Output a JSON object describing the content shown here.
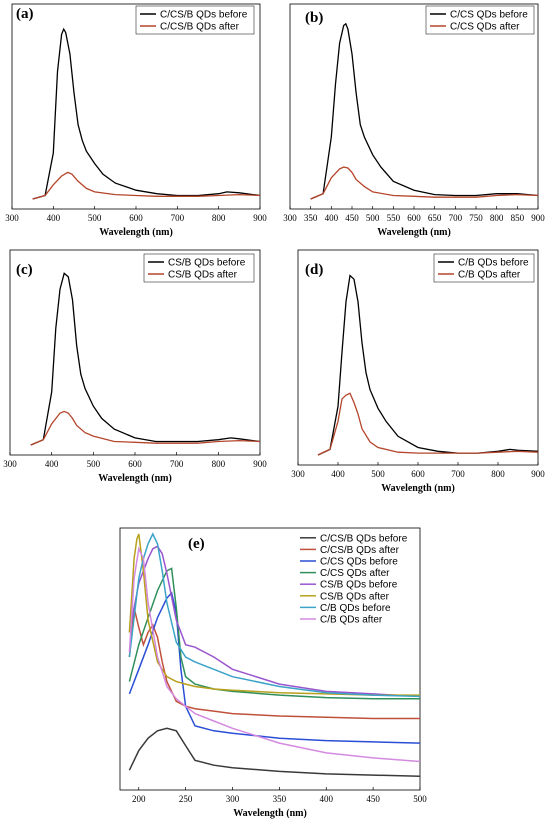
{
  "chart_data": [
    {
      "type": "line",
      "panel_label": "(a)",
      "xlabel": "Wavelength (nm)",
      "xlim": [
        300,
        900
      ],
      "ylim": [
        0,
        1.0
      ],
      "xticks": [
        300,
        400,
        500,
        600,
        700,
        800,
        900
      ],
      "legend_position": "top-right",
      "series": [
        {
          "name": "C/CS/B QDs before",
          "color": "#000000",
          "x": [
            350,
            380,
            400,
            410,
            420,
            425,
            430,
            440,
            450,
            460,
            470,
            480,
            500,
            520,
            550,
            600,
            650,
            700,
            750,
            800,
            820,
            850,
            900
          ],
          "y": [
            0.0,
            0.02,
            0.26,
            0.72,
            0.93,
            0.96,
            0.94,
            0.82,
            0.6,
            0.42,
            0.33,
            0.27,
            0.2,
            0.14,
            0.09,
            0.05,
            0.03,
            0.02,
            0.02,
            0.03,
            0.04,
            0.035,
            0.02
          ]
        },
        {
          "name": "C/CS/B QDs after",
          "color": "#b5452b",
          "x": [
            350,
            380,
            400,
            420,
            435,
            445,
            460,
            480,
            500,
            550,
            600,
            650,
            700,
            750,
            800,
            850,
            900
          ],
          "y": [
            0.0,
            0.02,
            0.08,
            0.13,
            0.15,
            0.14,
            0.1,
            0.06,
            0.04,
            0.025,
            0.02,
            0.015,
            0.015,
            0.015,
            0.02,
            0.025,
            0.02
          ]
        }
      ]
    },
    {
      "type": "line",
      "panel_label": "(b)",
      "xlabel": "Wavelength (nm)",
      "xlim": [
        300,
        900
      ],
      "ylim": [
        0,
        1.0
      ],
      "xticks": [
        300,
        350,
        400,
        450,
        500,
        550,
        600,
        650,
        700,
        750,
        800,
        850,
        900
      ],
      "legend_position": "top-right",
      "series": [
        {
          "name": "C/CS QDs before",
          "color": "#000000",
          "x": [
            350,
            380,
            400,
            410,
            420,
            430,
            435,
            440,
            450,
            460,
            470,
            480,
            500,
            520,
            550,
            600,
            650,
            700,
            750,
            800,
            850,
            900
          ],
          "y": [
            0.0,
            0.03,
            0.35,
            0.65,
            0.88,
            0.98,
            0.99,
            0.96,
            0.82,
            0.6,
            0.42,
            0.35,
            0.25,
            0.18,
            0.1,
            0.05,
            0.025,
            0.02,
            0.02,
            0.03,
            0.03,
            0.02
          ]
        },
        {
          "name": "C/CS QDs after",
          "color": "#b5452b",
          "x": [
            350,
            380,
            400,
            420,
            430,
            440,
            450,
            460,
            480,
            500,
            550,
            600,
            650,
            700,
            750,
            800,
            850,
            900
          ],
          "y": [
            0.0,
            0.03,
            0.12,
            0.17,
            0.18,
            0.175,
            0.15,
            0.11,
            0.07,
            0.04,
            0.02,
            0.015,
            0.01,
            0.01,
            0.01,
            0.02,
            0.025,
            0.02
          ]
        }
      ]
    },
    {
      "type": "line",
      "panel_label": "(c)",
      "xlabel": "Wavelength (nm)",
      "xlim": [
        300,
        900
      ],
      "ylim": [
        0,
        1.0
      ],
      "xticks": [
        300,
        400,
        500,
        600,
        700,
        800,
        900
      ],
      "legend_position": "top-right",
      "series": [
        {
          "name": "CS/B QDs before",
          "color": "#000000",
          "x": [
            350,
            380,
            400,
            410,
            420,
            430,
            440,
            450,
            460,
            470,
            480,
            500,
            520,
            550,
            600,
            650,
            700,
            750,
            800,
            830,
            850,
            900
          ],
          "y": [
            0.0,
            0.03,
            0.3,
            0.66,
            0.88,
            0.97,
            0.95,
            0.82,
            0.56,
            0.4,
            0.32,
            0.22,
            0.15,
            0.09,
            0.04,
            0.02,
            0.02,
            0.02,
            0.03,
            0.04,
            0.035,
            0.02
          ]
        },
        {
          "name": "CS/B QDs after",
          "color": "#b5452b",
          "x": [
            350,
            380,
            400,
            420,
            430,
            440,
            450,
            460,
            480,
            500,
            550,
            600,
            650,
            700,
            750,
            800,
            850,
            900
          ],
          "y": [
            0.0,
            0.03,
            0.12,
            0.18,
            0.19,
            0.18,
            0.15,
            0.11,
            0.07,
            0.05,
            0.02,
            0.015,
            0.01,
            0.01,
            0.01,
            0.02,
            0.025,
            0.02
          ]
        }
      ]
    },
    {
      "type": "line",
      "panel_label": "(d)",
      "xlabel": "Wavelength (nm)",
      "xlim": [
        300,
        900
      ],
      "ylim": [
        0,
        1.0
      ],
      "xticks": [
        300,
        400,
        500,
        600,
        700,
        800,
        900
      ],
      "legend_position": "top-right",
      "series": [
        {
          "name": "C/B QDs before",
          "color": "#000000",
          "x": [
            350,
            380,
            400,
            410,
            420,
            430,
            440,
            450,
            460,
            470,
            480,
            500,
            520,
            550,
            600,
            650,
            700,
            750,
            800,
            830,
            850,
            900
          ],
          "y": [
            0.0,
            0.03,
            0.26,
            0.55,
            0.82,
            0.96,
            0.94,
            0.82,
            0.6,
            0.44,
            0.35,
            0.25,
            0.18,
            0.1,
            0.04,
            0.02,
            0.01,
            0.01,
            0.02,
            0.03,
            0.025,
            0.02
          ]
        },
        {
          "name": "C/B QDs after",
          "color": "#b5452b",
          "x": [
            350,
            380,
            400,
            410,
            420,
            430,
            440,
            450,
            460,
            480,
            500,
            550,
            600,
            650,
            700,
            750,
            800,
            850,
            900
          ],
          "y": [
            0.0,
            0.03,
            0.18,
            0.3,
            0.32,
            0.33,
            0.28,
            0.22,
            0.14,
            0.07,
            0.04,
            0.015,
            0.01,
            0.01,
            0.01,
            0.01,
            0.015,
            0.02,
            0.015
          ]
        }
      ]
    },
    {
      "type": "line",
      "panel_label": "(e)",
      "xlabel": "Wavelength (nm)",
      "xlim": [
        180,
        500
      ],
      "ylim": [
        0,
        1.0
      ],
      "xticks": [
        200,
        250,
        300,
        350,
        400,
        450,
        500
      ],
      "legend_position": "top-right",
      "series": [
        {
          "name": "C/CS/B QDs before",
          "color": "#3a3a3a",
          "x": [
            190,
            200,
            210,
            220,
            230,
            240,
            250,
            260,
            280,
            300,
            350,
            400,
            450,
            500
          ],
          "y": [
            0.04,
            0.12,
            0.17,
            0.2,
            0.21,
            0.2,
            0.14,
            0.08,
            0.06,
            0.05,
            0.035,
            0.025,
            0.02,
            0.015
          ]
        },
        {
          "name": "C/CS/B QDs after",
          "color": "#c0503a",
          "x": [
            190,
            195,
            200,
            205,
            210,
            215,
            220,
            225,
            230,
            240,
            250,
            260,
            280,
            300,
            350,
            400,
            450,
            500
          ],
          "y": [
            0.5,
            0.7,
            0.62,
            0.55,
            0.6,
            0.63,
            0.58,
            0.48,
            0.4,
            0.32,
            0.3,
            0.29,
            0.28,
            0.27,
            0.26,
            0.255,
            0.25,
            0.25
          ]
        },
        {
          "name": "C/CS QDs before",
          "color": "#2a4fd6",
          "x": [
            190,
            200,
            210,
            220,
            230,
            235,
            240,
            245,
            250,
            260,
            280,
            300,
            350,
            400,
            450,
            500
          ],
          "y": [
            0.35,
            0.45,
            0.55,
            0.66,
            0.74,
            0.76,
            0.68,
            0.45,
            0.3,
            0.22,
            0.2,
            0.19,
            0.17,
            0.16,
            0.155,
            0.15
          ]
        },
        {
          "name": "C/CS QDs after",
          "color": "#2f8f5a",
          "x": [
            190,
            200,
            210,
            220,
            230,
            235,
            240,
            245,
            250,
            260,
            280,
            300,
            350,
            400,
            450,
            500
          ],
          "y": [
            0.4,
            0.55,
            0.66,
            0.77,
            0.85,
            0.86,
            0.7,
            0.5,
            0.42,
            0.39,
            0.37,
            0.36,
            0.345,
            0.335,
            0.33,
            0.33
          ]
        },
        {
          "name": "CS/B QDs before",
          "color": "#9a55cf",
          "x": [
            190,
            200,
            210,
            215,
            220,
            225,
            230,
            240,
            250,
            260,
            280,
            300,
            350,
            400,
            450,
            500
          ],
          "y": [
            0.6,
            0.8,
            0.9,
            0.94,
            0.95,
            0.92,
            0.84,
            0.65,
            0.55,
            0.54,
            0.5,
            0.45,
            0.39,
            0.36,
            0.35,
            0.34
          ]
        },
        {
          "name": "CS/B QDs after",
          "color": "#b8a01c",
          "x": [
            190,
            195,
            198,
            200,
            205,
            210,
            220,
            230,
            240,
            250,
            260,
            280,
            300,
            350,
            400,
            450,
            500
          ],
          "y": [
            0.6,
            0.9,
            0.98,
            1.0,
            0.85,
            0.65,
            0.48,
            0.42,
            0.4,
            0.39,
            0.38,
            0.37,
            0.365,
            0.355,
            0.35,
            0.345,
            0.345
          ]
        },
        {
          "name": "C/B QDs before",
          "color": "#3ba3c7",
          "x": [
            190,
            200,
            205,
            210,
            215,
            220,
            225,
            230,
            240,
            250,
            260,
            280,
            300,
            350,
            400,
            450,
            500
          ],
          "y": [
            0.5,
            0.82,
            0.9,
            0.96,
            1.0,
            0.96,
            0.85,
            0.72,
            0.56,
            0.5,
            0.48,
            0.45,
            0.42,
            0.38,
            0.355,
            0.345,
            0.34
          ]
        },
        {
          "name": "C/B QDs after",
          "color": "#d48ae0",
          "x": [
            190,
            195,
            200,
            205,
            210,
            220,
            230,
            240,
            250,
            260,
            280,
            300,
            350,
            400,
            450,
            500
          ],
          "y": [
            0.52,
            0.82,
            0.94,
            0.9,
            0.72,
            0.5,
            0.38,
            0.33,
            0.3,
            0.27,
            0.24,
            0.21,
            0.15,
            0.11,
            0.09,
            0.075
          ]
        }
      ]
    }
  ]
}
